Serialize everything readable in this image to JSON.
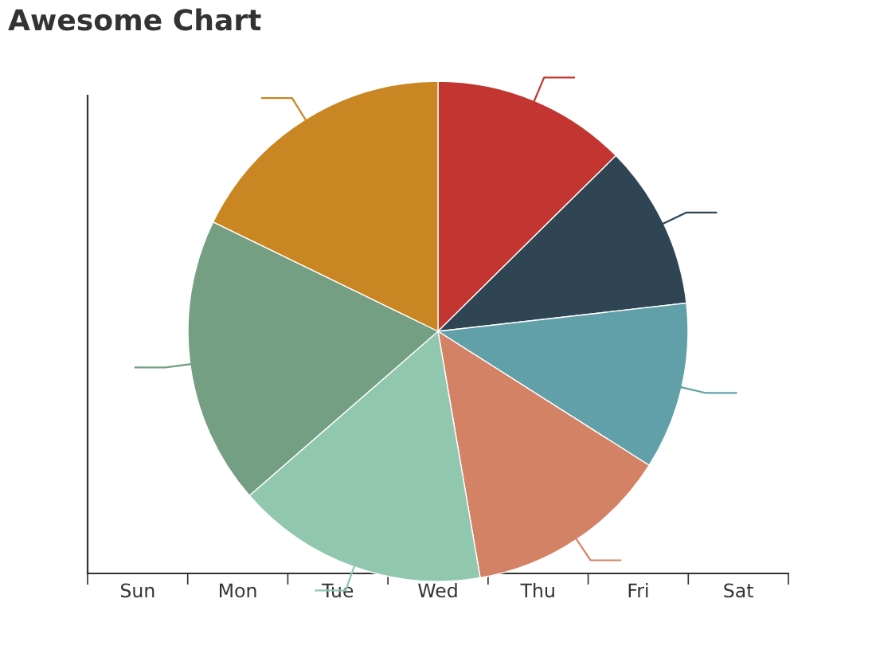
{
  "chart_data": {
    "type": "pie",
    "title": "Awesome Chart",
    "categories": [
      null,
      null,
      null,
      null,
      null,
      null,
      null
    ],
    "values": [
      12.6,
      10.6,
      10.8,
      13.3,
      16.3,
      18.6,
      17.8
    ],
    "colors": [
      "#c23531",
      "#2f4554",
      "#61a0a8",
      "#d48265",
      "#91c7ae",
      "#749f83",
      "#ca8622"
    ],
    "annotations": [
      "Sun",
      "Mon",
      "Tue",
      "Wed",
      "Thu",
      "Fri",
      "Sat"
    ]
  }
}
